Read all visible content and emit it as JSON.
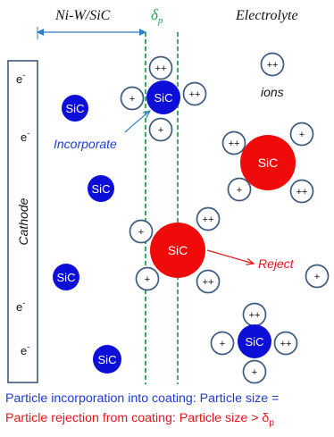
{
  "headers": {
    "coating": "Ni-W/SiC",
    "boundary_symbol": "δ",
    "boundary_sub": "p",
    "electrolyte": "Electrolyte"
  },
  "cathode": {
    "label": "Cathode",
    "electron": "e",
    "electron_sup": "-"
  },
  "particle_label": "SiC",
  "ion_labels": {
    "cation2": "++",
    "cation1": "+"
  },
  "annotations": {
    "ions": "ions",
    "incorporate": "Incorporate",
    "reject": "Reject"
  },
  "captions": {
    "incorporation": "Particle incorporation into coating: Particle size =",
    "rejection_text": "Particle rejection from coating: Particle size > δ",
    "rejection_sub": "p"
  },
  "colors": {
    "small_particle": "#0d0fd9",
    "large_particle": "#f00b0b",
    "ion_ring": "#3d5a80",
    "boundary": "#1fa84a",
    "cathode_border": "#3d5a80",
    "incorporate_text": "#1f3bd6",
    "reject_text": "#e8151b",
    "axis_line": "#2e7fc4"
  }
}
